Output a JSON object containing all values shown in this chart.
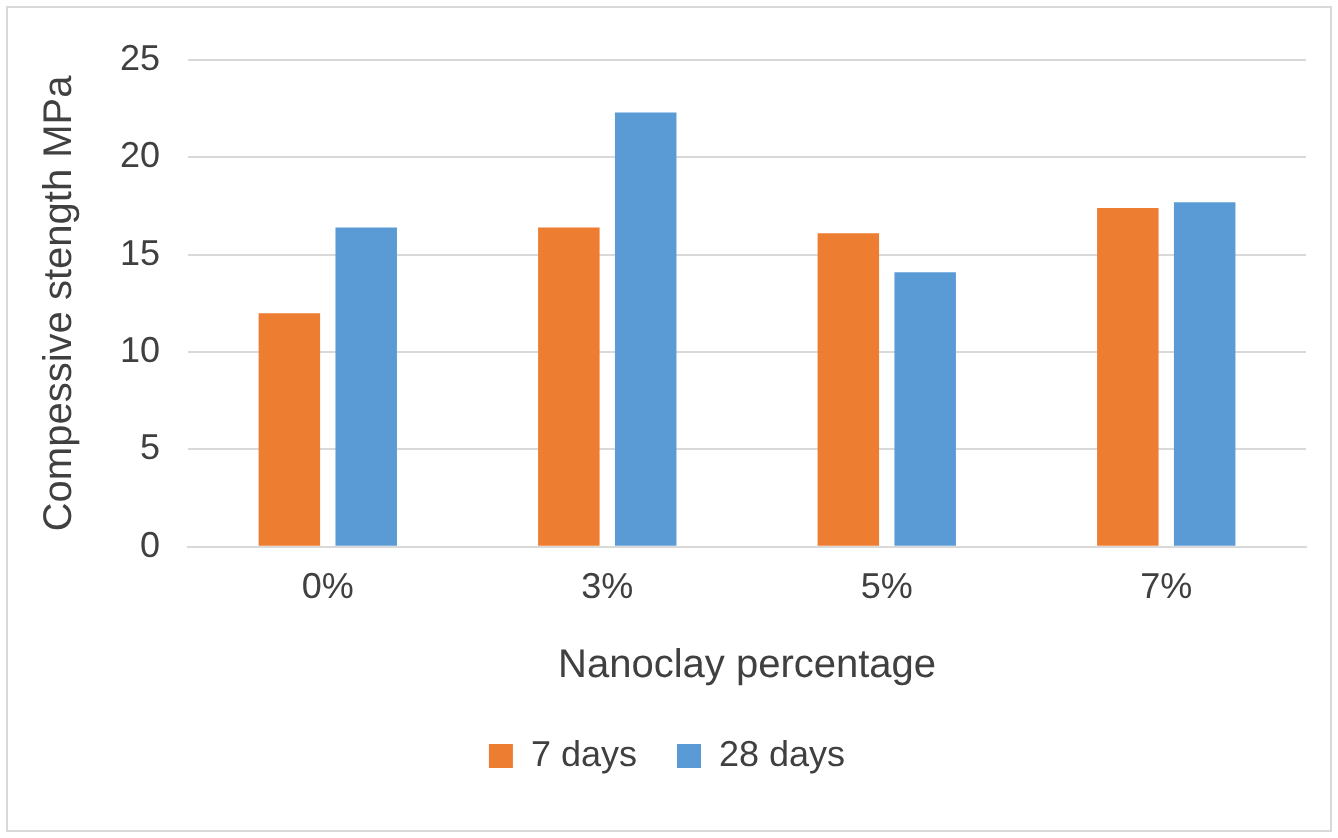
{
  "chart_data": {
    "type": "bar",
    "xlabel": "Nanoclay percentage",
    "ylabel": "Compessive stength MPa",
    "categories": [
      "0%",
      "3%",
      "5%",
      "7%"
    ],
    "series": [
      {
        "name": "7 days",
        "color": "#ed7d31",
        "values": [
          12.0,
          16.4,
          16.1,
          17.4
        ]
      },
      {
        "name": "28 days",
        "color": "#5b9bd5",
        "values": [
          16.4,
          22.3,
          14.1,
          17.7
        ]
      }
    ],
    "ylim": [
      0,
      25
    ],
    "yticks": [
      0,
      5,
      10,
      15,
      20,
      25
    ],
    "grid": "y",
    "legend": "bottom"
  }
}
